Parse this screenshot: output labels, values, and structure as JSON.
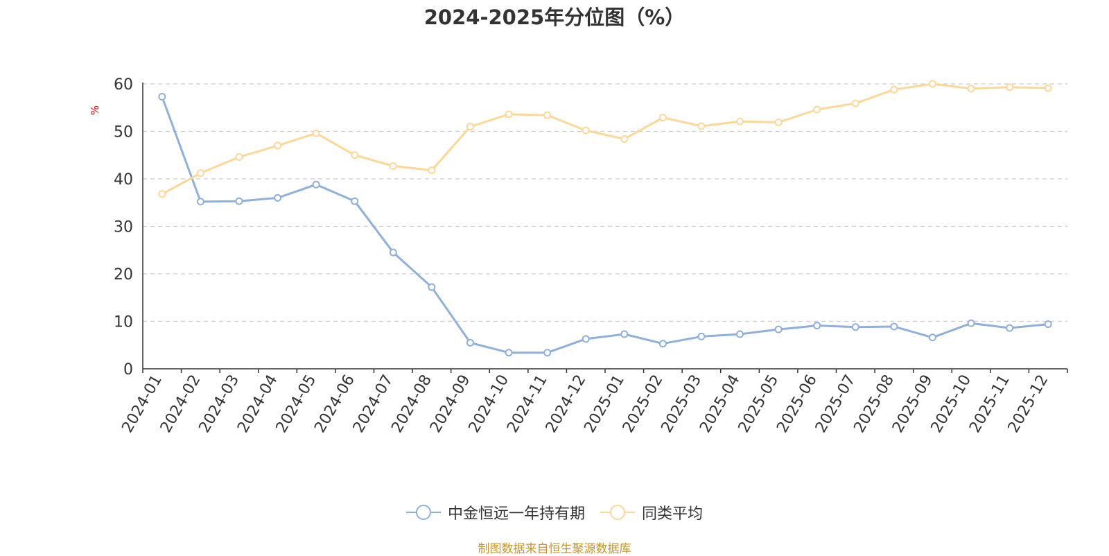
{
  "chart_data": {
    "type": "line",
    "title": "2024-2025年分位图（%）",
    "ylabel": "%",
    "xlabel": "",
    "ylim": [
      0,
      60
    ],
    "yticks": [
      0,
      10,
      20,
      30,
      40,
      50,
      60
    ],
    "grid": "horizontal-dashed",
    "categories": [
      "2024-01",
      "2024-02",
      "2024-03",
      "2024-04",
      "2024-05",
      "2024-06",
      "2024-07",
      "2024-08",
      "2024-09",
      "2024-10",
      "2024-11",
      "2024-12",
      "2025-01",
      "2025-02",
      "2025-03",
      "2025-04",
      "2025-05",
      "2025-06",
      "2025-07",
      "2025-08",
      "2025-09",
      "2025-10",
      "2025-11",
      "2025-12"
    ],
    "series": [
      {
        "name": "中金恒远一年持有期",
        "color": "#8eb0da",
        "values": [
          57.3,
          35.2,
          35.3,
          36.0,
          38.8,
          35.3,
          24.5,
          17.2,
          5.5,
          3.4,
          3.4,
          6.3,
          7.3,
          5.3,
          6.8,
          7.3,
          8.3,
          9.1,
          8.8,
          8.9,
          6.6,
          9.6,
          8.6,
          9.4
        ]
      },
      {
        "name": "同类平均",
        "color": "#fcd898",
        "values": [
          36.8,
          41.2,
          44.6,
          47.0,
          49.6,
          45.0,
          42.7,
          41.8,
          51.0,
          53.6,
          53.4,
          50.2,
          48.4,
          52.9,
          51.1,
          52.1,
          51.9,
          54.6,
          55.9,
          58.8,
          60.0,
          59.0,
          59.3,
          59.1
        ]
      }
    ],
    "legend": "bottom-center"
  },
  "footer": "制图数据来自恒生聚源数据库"
}
